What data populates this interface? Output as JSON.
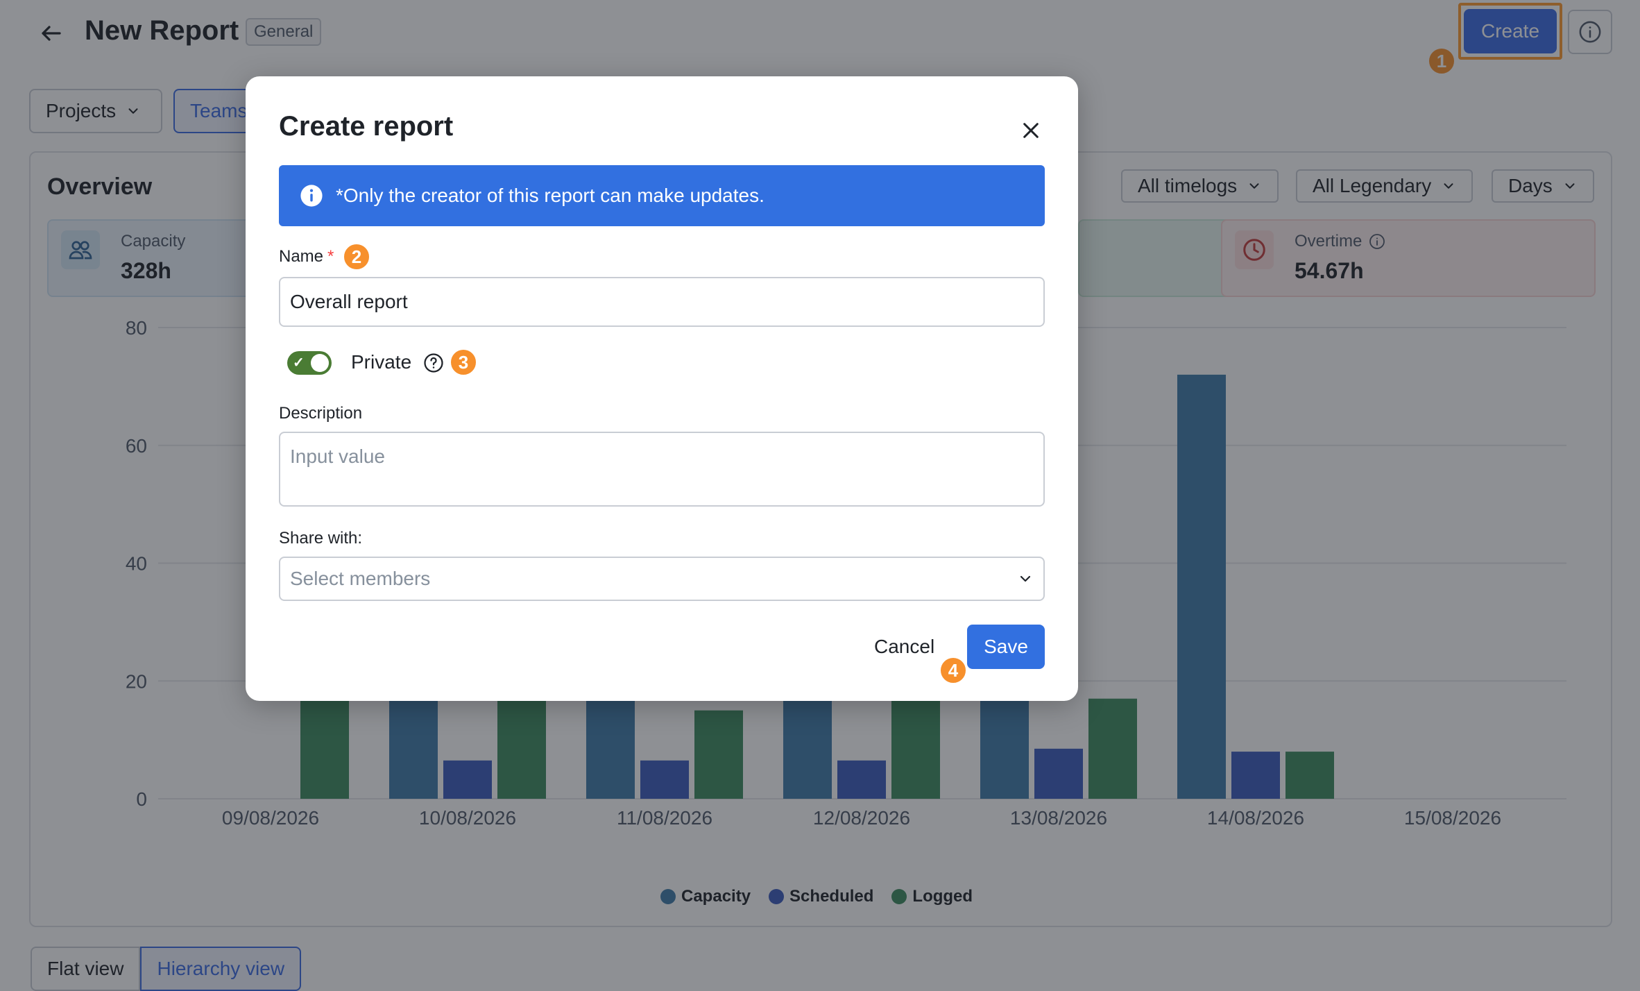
{
  "header": {
    "title": "New Report",
    "tag": "General",
    "create_label": "Create"
  },
  "filters": {
    "projects": "Projects",
    "teams": "Teams"
  },
  "overview": {
    "title": "Overview",
    "selects": [
      "All timelogs",
      "All Legendary",
      "Days"
    ],
    "stats": [
      {
        "label": "Capacity",
        "value": "328h"
      },
      {
        "label": "Overtime",
        "value": "54.67h"
      }
    ]
  },
  "chart_data": {
    "type": "bar",
    "categories": [
      "09/08/2026",
      "10/08/2026",
      "11/08/2026",
      "12/08/2026",
      "13/08/2026",
      "14/08/2026",
      "15/08/2026"
    ],
    "series": [
      {
        "name": "Capacity",
        "color": "#3f7ba8",
        "values": [
          null,
          24,
          24,
          24,
          24,
          72,
          null
        ]
      },
      {
        "name": "Scheduled",
        "color": "#3b5bbd",
        "values": [
          null,
          6.5,
          6.5,
          6.5,
          8.5,
          8,
          null
        ]
      },
      {
        "name": "Logged",
        "color": "#3d8a5f",
        "values": [
          24,
          24,
          15,
          24,
          17,
          8,
          null
        ]
      }
    ],
    "ylim": [
      0,
      80
    ],
    "yticks": [
      0,
      20,
      40,
      60,
      80
    ],
    "legend_position": "bottom-center"
  },
  "view_tabs": [
    "Flat view",
    "Hierarchy view"
  ],
  "modal": {
    "title": "Create report",
    "notice": "*Only the creator of this report can make updates.",
    "name_label": "Name",
    "name_required": "*",
    "name_value": "Overall report",
    "private_label": "Private",
    "private_on": true,
    "description_label": "Description",
    "description_placeholder": "Input value",
    "share_label": "Share with:",
    "share_placeholder": "Select members",
    "cancel_label": "Cancel",
    "save_label": "Save"
  },
  "step_badges": [
    "1",
    "2",
    "3",
    "4"
  ]
}
